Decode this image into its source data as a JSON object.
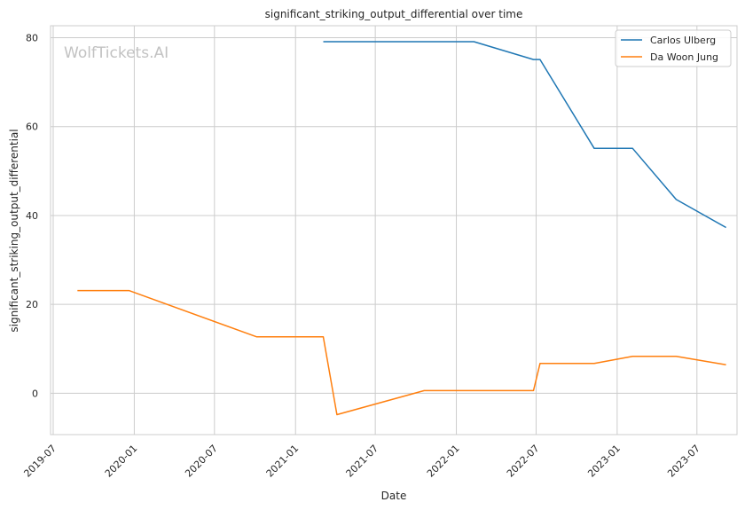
{
  "chart_data": {
    "type": "line",
    "title": "significant_striking_output_differential over time",
    "xlabel": "Date",
    "ylabel": "significant_striking_output_differential",
    "watermark": "WolfTickets.AI",
    "xlim": [
      "2019-06-25",
      "2023-09-30"
    ],
    "ylim": [
      -9.3,
      82.7
    ],
    "x_ticks": [
      {
        "date": "2019-07-01",
        "label": "2019-07"
      },
      {
        "date": "2020-01-01",
        "label": "2020-01"
      },
      {
        "date": "2020-07-01",
        "label": "2020-07"
      },
      {
        "date": "2021-01-01",
        "label": "2021-01"
      },
      {
        "date": "2021-07-01",
        "label": "2021-07"
      },
      {
        "date": "2022-01-01",
        "label": "2022-01"
      },
      {
        "date": "2022-07-01",
        "label": "2022-07"
      },
      {
        "date": "2023-01-01",
        "label": "2023-01"
      },
      {
        "date": "2023-07-01",
        "label": "2023-07"
      }
    ],
    "y_ticks": [
      0,
      20,
      40,
      60,
      80
    ],
    "grid": true,
    "legend_position": "top-right",
    "series": [
      {
        "name": "Carlos Ulberg",
        "color": "#1f77b4",
        "points": [
          {
            "x": "2021-03-05",
            "y": 79.1
          },
          {
            "x": "2022-02-10",
            "y": 79.1
          },
          {
            "x": "2022-06-25",
            "y": 75.1
          },
          {
            "x": "2022-07-10",
            "y": 75.1
          },
          {
            "x": "2022-11-10",
            "y": 55.1
          },
          {
            "x": "2023-02-05",
            "y": 55.1
          },
          {
            "x": "2023-05-15",
            "y": 43.6
          },
          {
            "x": "2023-09-05",
            "y": 37.3
          }
        ]
      },
      {
        "name": "Da Woon Jung",
        "color": "#ff7f0e",
        "points": [
          {
            "x": "2019-08-25",
            "y": 23.1
          },
          {
            "x": "2019-12-20",
            "y": 23.1
          },
          {
            "x": "2020-10-05",
            "y": 12.7
          },
          {
            "x": "2021-03-05",
            "y": 12.7
          },
          {
            "x": "2021-04-05",
            "y": -4.8
          },
          {
            "x": "2021-10-20",
            "y": 0.6
          },
          {
            "x": "2022-06-25",
            "y": 0.6
          },
          {
            "x": "2022-07-10",
            "y": 6.7
          },
          {
            "x": "2022-11-10",
            "y": 6.7
          },
          {
            "x": "2023-02-05",
            "y": 8.3
          },
          {
            "x": "2023-05-15",
            "y": 8.3
          },
          {
            "x": "2023-09-05",
            "y": 6.4
          }
        ]
      }
    ]
  }
}
